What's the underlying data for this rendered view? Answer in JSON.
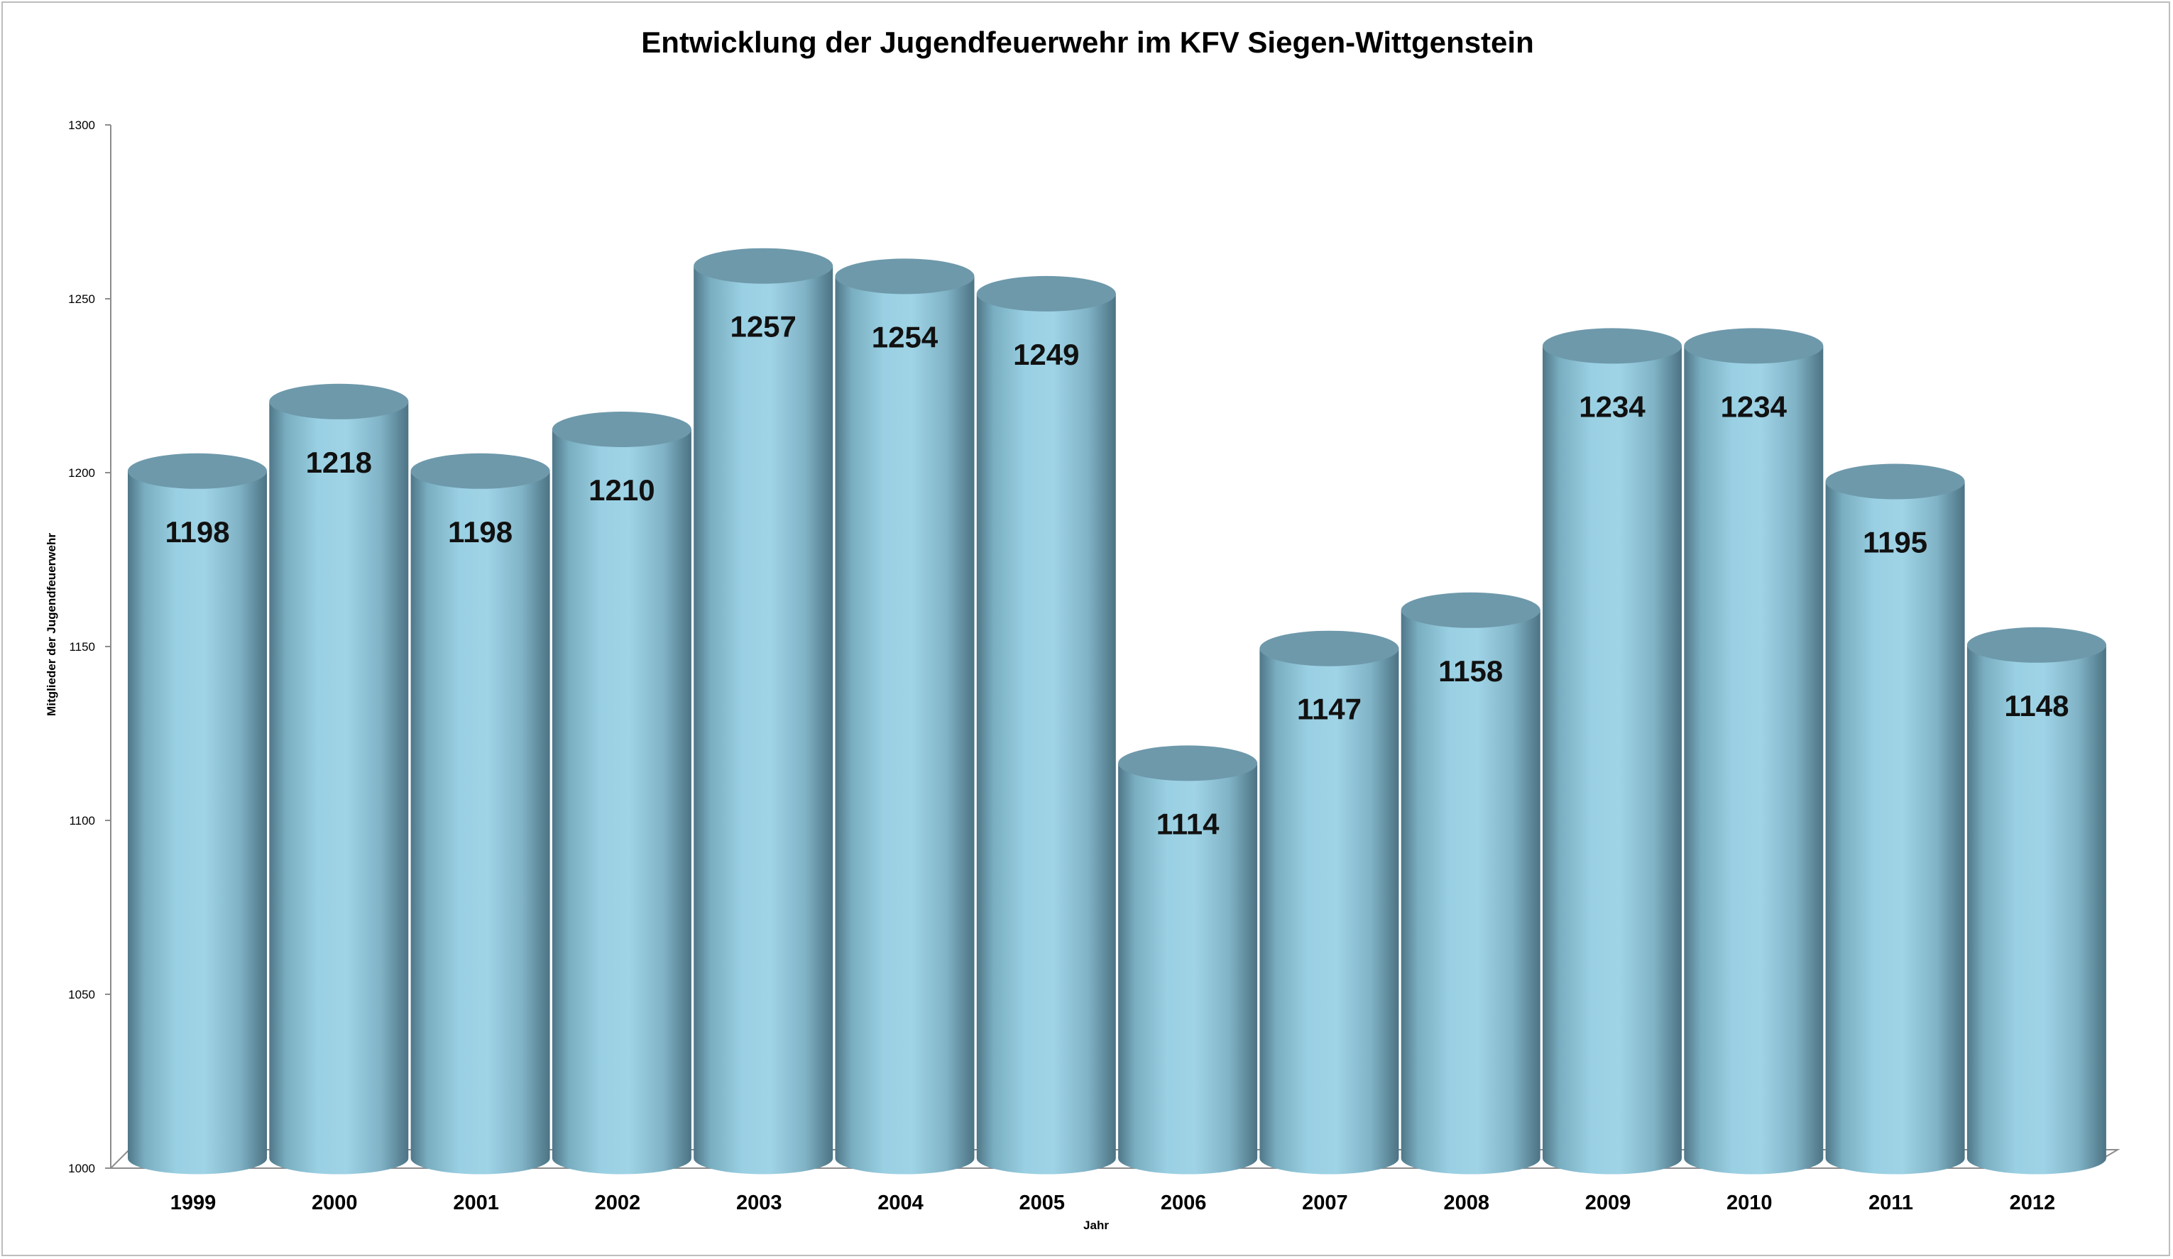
{
  "chart_data": {
    "type": "bar",
    "style": "3d-cylinder",
    "title": "Entwicklung der Jugendfeuerwehr im KFV Siegen-Wittgenstein",
    "xlabel": "Jahr",
    "ylabel": "Mitglieder der Jugendfeuerwehr",
    "ylim": [
      1000,
      1300
    ],
    "yticks": [
      1000,
      1050,
      1100,
      1150,
      1200,
      1250,
      1300
    ],
    "grid": false,
    "legend": "none",
    "categories": [
      "1999",
      "2000",
      "2001",
      "2002",
      "2003",
      "2004",
      "2005",
      "2006",
      "2007",
      "2008",
      "2009",
      "2010",
      "2011",
      "2012"
    ],
    "values": [
      1198,
      1218,
      1198,
      1210,
      1257,
      1254,
      1249,
      1114,
      1147,
      1158,
      1234,
      1234,
      1195,
      1148
    ],
    "colors": {
      "bar_light": "#9fd3e6",
      "bar_dark": "#4f7788",
      "bar_top": "#6e99ab",
      "axis": "#8c8c8c",
      "frame": "#bdbdbd"
    }
  }
}
